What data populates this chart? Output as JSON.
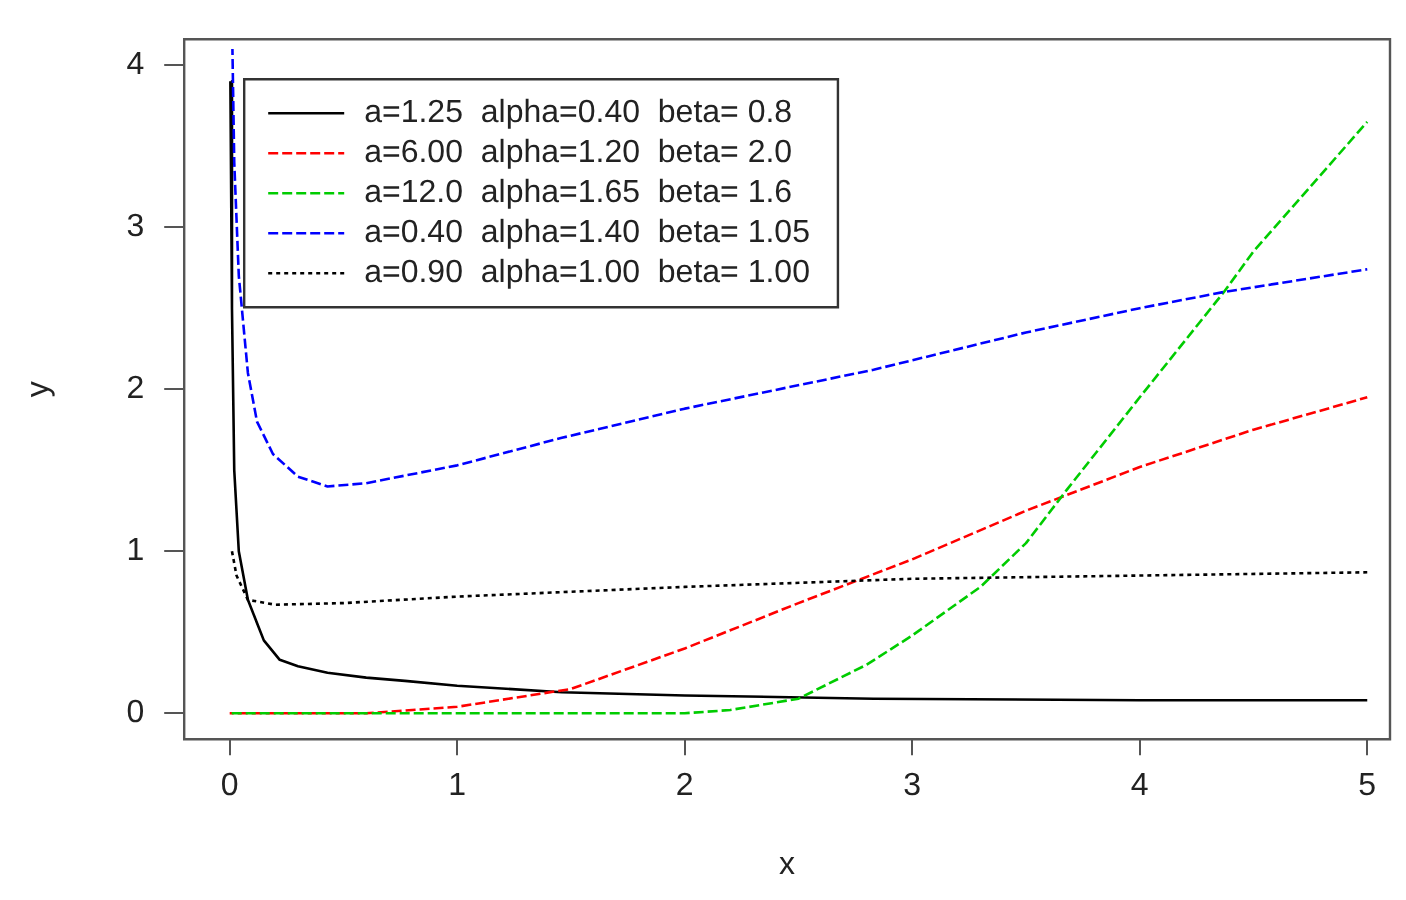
{
  "chart_data": {
    "type": "line",
    "xlabel": "x",
    "ylabel": "y",
    "xlim": [
      -0.2,
      5.1
    ],
    "ylim": [
      -0.16,
      4.16
    ],
    "xticks": [
      0,
      1,
      2,
      3,
      4,
      5
    ],
    "yticks": [
      0,
      1,
      2,
      3,
      4
    ],
    "grid": false,
    "legend": "top left",
    "marker": "none",
    "series": [
      {
        "name": "a=1.25  alpha=0.40  beta= 0.8",
        "color": "#000000",
        "line_style": "solid",
        "x": [
          0.003,
          0.01,
          0.02,
          0.04,
          0.08,
          0.15,
          0.22,
          0.3,
          0.43,
          0.6,
          0.77,
          1,
          1.46,
          2,
          2.83,
          4,
          5
        ],
        "values": [
          3.9,
          2.5,
          1.5,
          1.0,
          0.7,
          0.45,
          0.33,
          0.29,
          0.25,
          0.22,
          0.2,
          0.17,
          0.13,
          0.11,
          0.09,
          0.08,
          0.08
        ]
      },
      {
        "name": "a=6.00  alpha=1.20  beta= 2.0",
        "color": "#ff0000",
        "line_style": "dashed",
        "x": [
          0,
          0.3,
          0.6,
          1,
          1.5,
          2,
          2.5,
          3,
          3.5,
          4,
          4.5,
          5
        ],
        "values": [
          0,
          0,
          0,
          0.04,
          0.15,
          0.4,
          0.68,
          0.95,
          1.25,
          1.52,
          1.75,
          1.95
        ]
      },
      {
        "name": "a=12.0  alpha=1.65  beta= 1.6",
        "color": "#00cc00",
        "line_style": "dashed",
        "x": [
          0,
          1,
          2,
          2.2,
          2.5,
          2.8,
          3,
          3.3,
          3.5,
          3.68,
          4,
          4.37,
          4.5,
          5
        ],
        "values": [
          0,
          0,
          0,
          0.02,
          0.09,
          0.3,
          0.48,
          0.78,
          1.05,
          1.38,
          1.95,
          2.6,
          2.85,
          3.65
        ]
      },
      {
        "name": "a=0.40  alpha=1.40  beta= 1.05",
        "color": "#0000ff",
        "line_style": "dashed",
        "x": [
          0.012,
          0.02,
          0.04,
          0.08,
          0.12,
          0.19,
          0.3,
          0.43,
          0.6,
          1,
          1.46,
          2,
          2.83,
          3.5,
          4,
          4.37,
          5
        ],
        "values": [
          4.1,
          3.4,
          2.7,
          2.1,
          1.8,
          1.6,
          1.46,
          1.4,
          1.42,
          1.53,
          1.7,
          1.88,
          2.12,
          2.35,
          2.5,
          2.6,
          2.74
        ]
      },
      {
        "name": "a=0.90  alpha=1.00  beta= 1.00",
        "color": "#000000",
        "line_style": "dotted",
        "x": [
          0.01,
          0.03,
          0.08,
          0.2,
          0.5,
          1,
          2,
          3,
          4,
          5
        ],
        "values": [
          1.0,
          0.85,
          0.7,
          0.67,
          0.68,
          0.72,
          0.78,
          0.83,
          0.85,
          0.87
        ]
      }
    ]
  }
}
